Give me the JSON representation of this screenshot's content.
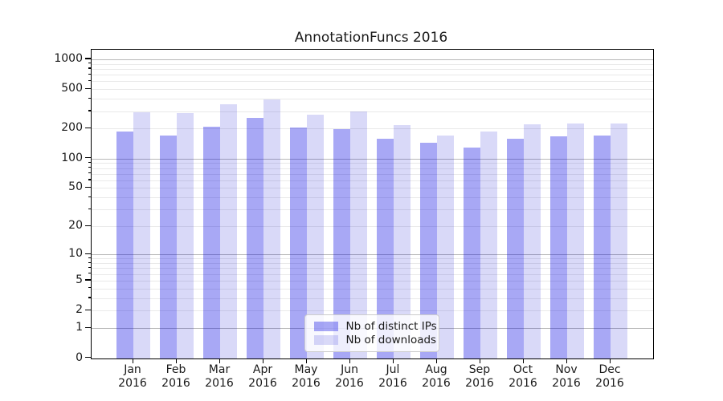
{
  "title": "AnnotationFuncs 2016",
  "chart_data": {
    "type": "bar",
    "categories": [
      "Jan 2016",
      "Feb 2016",
      "Mar 2016",
      "Apr 2016",
      "May 2016",
      "Jun 2016",
      "Jul 2016",
      "Aug 2016",
      "Sep 2016",
      "Oct 2016",
      "Nov 2016",
      "Dec 2016"
    ],
    "series": [
      {
        "name": "Nb of distinct IPs",
        "color": "rgba(0,0,225,0.34)",
        "values": [
          188,
          170,
          208,
          257,
          204,
          198,
          159,
          145,
          128,
          159,
          169,
          171
        ]
      },
      {
        "name": "Nb of downloads",
        "color": "rgba(0,0,210,0.15)",
        "values": [
          291,
          287,
          350,
          396,
          275,
          300,
          217,
          171,
          186,
          220,
          226,
          227
        ]
      }
    ],
    "title": "AnnotationFuncs 2016",
    "xlabel": "",
    "ylabel": "",
    "yscale": "log1p",
    "yticks": [
      0,
      1,
      2,
      5,
      10,
      20,
      50,
      100,
      200,
      500,
      1000
    ],
    "minor_gridlines": [
      3,
      4,
      6,
      7,
      8,
      9,
      30,
      40,
      60,
      70,
      80,
      90,
      300,
      400,
      600,
      700,
      800,
      900
    ],
    "ylim": [
      0,
      1259
    ],
    "grid": "both",
    "legend_position": "lower center"
  },
  "colors": {
    "major_grid": "#b8b8b8",
    "minor_grid": "#e9e9e9",
    "axis": "#000000",
    "text": "#1a1a1a"
  }
}
